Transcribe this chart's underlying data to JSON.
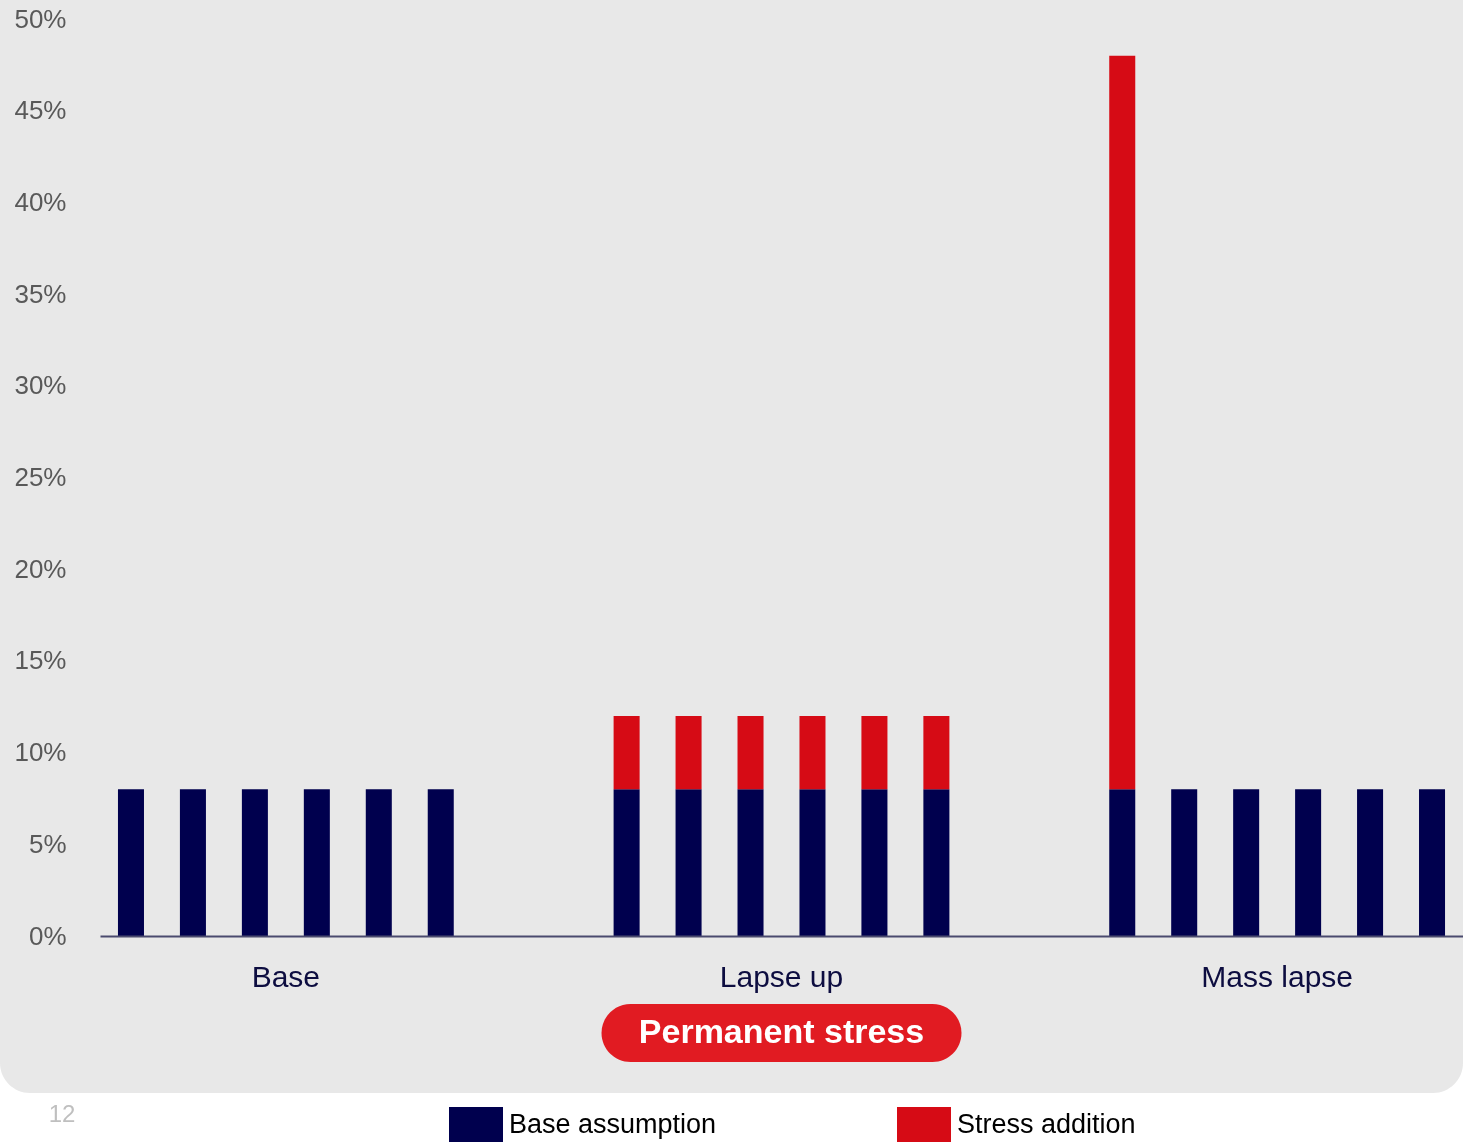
{
  "chart_data": {
    "type": "bar",
    "stacked": true,
    "categories": [
      null,
      null,
      "Base",
      null,
      null,
      null,
      null,
      null,
      null,
      null,
      "Lapse up",
      null,
      null,
      null,
      null,
      null,
      null,
      null,
      "Mass lapse",
      null,
      null,
      null
    ],
    "series": [
      {
        "name": "Base assumption",
        "color": "#00004e",
        "values": [
          8,
          8,
          8,
          8,
          8,
          8,
          null,
          null,
          8,
          8,
          8,
          8,
          8,
          8,
          null,
          null,
          8,
          8,
          8,
          8,
          8,
          8
        ]
      },
      {
        "name": "Stress addition",
        "color": "#d60b15",
        "values": [
          null,
          null,
          null,
          null,
          null,
          null,
          null,
          null,
          4,
          4,
          4,
          4,
          4,
          4,
          null,
          null,
          40,
          null,
          null,
          null,
          null,
          null
        ]
      }
    ],
    "ylim": [
      0,
      50
    ],
    "yticks": [
      {
        "value": 0,
        "label": "0%"
      },
      {
        "value": 5,
        "label": "5%"
      },
      {
        "value": 10,
        "label": "10%"
      },
      {
        "value": 15,
        "label": "15%"
      },
      {
        "value": 20,
        "label": "20%"
      },
      {
        "value": 25,
        "label": "25%"
      },
      {
        "value": 30,
        "label": "30%"
      },
      {
        "value": 35,
        "label": "35%"
      },
      {
        "value": 40,
        "label": "40%"
      },
      {
        "value": 45,
        "label": "45%"
      },
      {
        "value": 50,
        "label": "50%"
      }
    ],
    "legend": "bottom",
    "annotations": [
      "Permanent stress",
      "12"
    ]
  }
}
